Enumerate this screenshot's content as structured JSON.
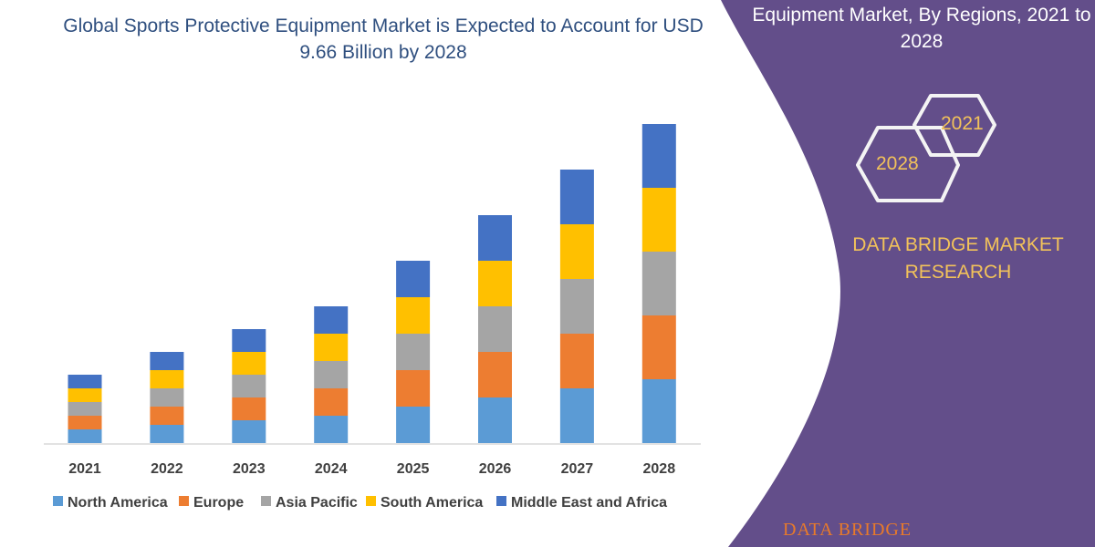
{
  "chart_data": {
    "type": "bar",
    "stacked": true,
    "title": "Global Sports Protective Equipment Market is Expected to Account for USD 9.66 Billion by 2028",
    "categories": [
      "2021",
      "2022",
      "2023",
      "2024",
      "2025",
      "2026",
      "2027",
      "2028"
    ],
    "series": [
      {
        "name": "North America",
        "color": "#5b9bd5",
        "values": [
          15,
          20,
          25,
          30,
          40,
          50,
          60,
          70
        ]
      },
      {
        "name": "Europe",
        "color": "#ed7d31",
        "values": [
          15,
          20,
          25,
          30,
          40,
          50,
          60,
          70
        ]
      },
      {
        "name": "Asia Pacific",
        "color": "#a5a5a5",
        "values": [
          15,
          20,
          25,
          30,
          40,
          50,
          60,
          70
        ]
      },
      {
        "name": "South America",
        "color": "#ffc000",
        "values": [
          15,
          20,
          25,
          30,
          40,
          50,
          60,
          70
        ]
      },
      {
        "name": "Middle East and Africa",
        "color": "#4472c4",
        "values": [
          15,
          20,
          25,
          30,
          40,
          50,
          60,
          70
        ]
      }
    ],
    "y_axis_shown": false,
    "grid": false,
    "legend_position": "bottom"
  },
  "panel": {
    "title": "Equipment Market, By Regions, 2021 to 2028",
    "hex_a": "2021",
    "hex_b": "2028",
    "brand": "DATA BRIDGE MARKET RESEARCH",
    "logo_text": "DATA BRIDGE",
    "color": "#634e8a"
  }
}
